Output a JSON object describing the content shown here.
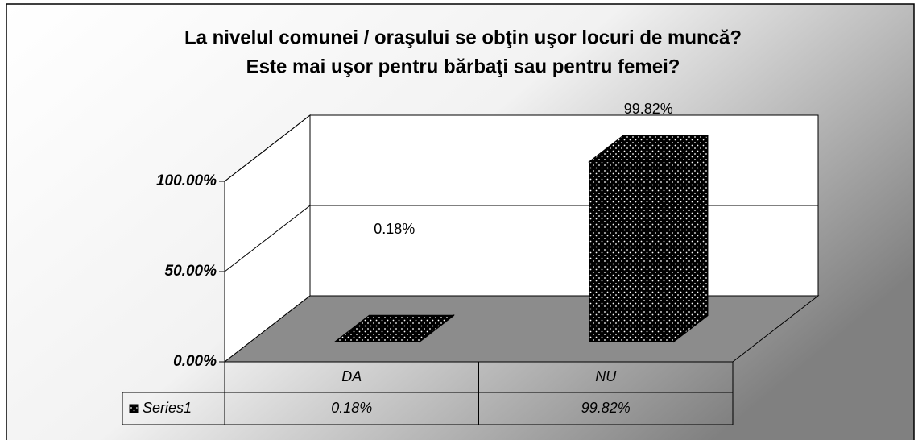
{
  "chart_data": {
    "type": "bar3d",
    "title": [
      "La nivelul comunei / oraşului se obţin uşor locuri de muncă?",
      "Este mai uşor pentru bărbaţi sau pentru femei?"
    ],
    "categories": [
      "DA",
      "NU"
    ],
    "series": [
      {
        "name": "Series1",
        "color": "#000000",
        "values": [
          0.18,
          99.82
        ],
        "value_labels": [
          "0.18%",
          "99.82%"
        ]
      }
    ],
    "ylim": [
      0,
      100
    ],
    "yticks": [
      {
        "value": 0,
        "label": "0.00%"
      },
      {
        "value": 50,
        "label": "50.00%"
      },
      {
        "value": 100,
        "label": "100.00%"
      }
    ],
    "grid": true,
    "data_table": true
  }
}
